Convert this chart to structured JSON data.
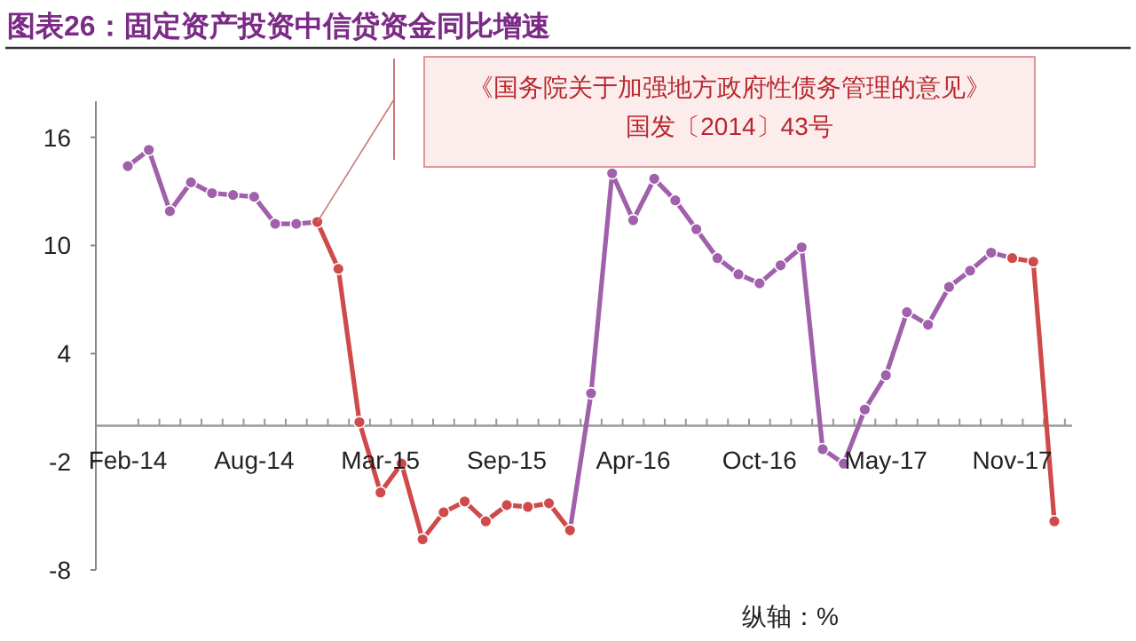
{
  "chart_data": {
    "type": "line",
    "title": "图表26：固定资产投资中信贷资金同比增速",
    "categories": [
      "Feb-14",
      null,
      null,
      null,
      null,
      null,
      "Aug-14",
      null,
      null,
      null,
      null,
      null,
      "Mar-15",
      null,
      null,
      null,
      null,
      null,
      "Sep-15",
      null,
      null,
      null,
      null,
      null,
      "Apr-16",
      null,
      null,
      null,
      null,
      null,
      "Oct-16",
      null,
      null,
      null,
      null,
      null,
      "May-17",
      null,
      null,
      null,
      null,
      null,
      "Nov-17",
      null,
      null
    ],
    "series": [
      {
        "color": "#a060ab",
        "values": [
          14.4,
          15.3,
          11.9,
          13.5,
          12.9,
          12.8,
          12.7,
          11.2,
          11.2,
          11.3,
          null,
          null,
          null,
          null,
          null,
          null,
          null,
          null,
          null,
          null,
          null,
          -5.8,
          1.8,
          14.0,
          11.4,
          13.7,
          12.5,
          10.9,
          9.3,
          8.4,
          7.9,
          8.9,
          9.9,
          -1.3,
          -2.1,
          0.9,
          2.8,
          6.3,
          5.6,
          7.7,
          8.6,
          9.6,
          9.3,
          null,
          null
        ]
      },
      {
        "color": "#cf4a4a",
        "values": [
          null,
          null,
          null,
          null,
          null,
          null,
          null,
          null,
          null,
          11.3,
          8.7,
          0.2,
          -3.7,
          -2.1,
          -6.3,
          -4.8,
          -4.2,
          -5.3,
          -4.4,
          -4.5,
          -4.3,
          -5.8,
          null,
          null,
          null,
          null,
          null,
          null,
          null,
          null,
          null,
          null,
          null,
          null,
          null,
          null,
          null,
          null,
          null,
          null,
          null,
          null,
          9.3,
          9.1,
          -5.3
        ]
      }
    ],
    "ylim": [
      -8,
      18
    ],
    "yticks": [
      16,
      10,
      4,
      -2,
      -8
    ],
    "marker": "circle",
    "line_style": "solid",
    "grid": false,
    "annotations": [
      "《国务院关于加强地方政府性债务管理的意见》",
      "国发〔2014〕43号",
      "纵轴：%"
    ]
  }
}
